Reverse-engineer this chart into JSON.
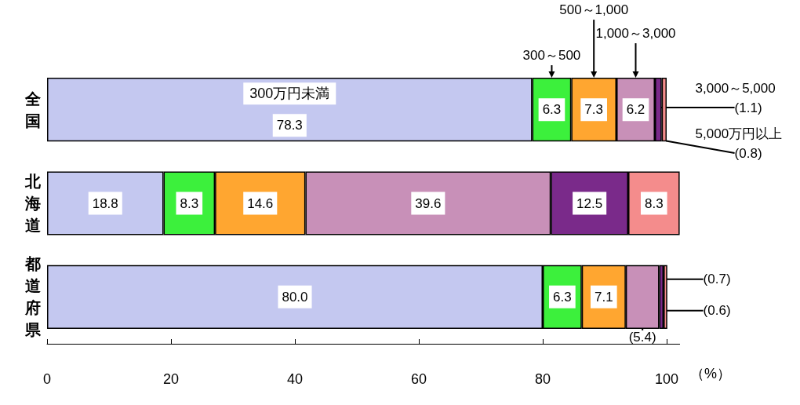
{
  "chart_data": {
    "type": "bar",
    "orientation": "horizontal",
    "stacked": true,
    "categories": [
      "全国",
      "北海道",
      "都道府県"
    ],
    "xlim": [
      0,
      102.1
    ],
    "xticks": [
      0,
      20,
      40,
      60,
      80,
      {
        "value": 100,
        "label": "100"
      }
    ],
    "xlabel": "（%）",
    "grid": false,
    "legend": false,
    "series": [
      {
        "name": "300万円未満",
        "color": "#c4c8f0",
        "values": [
          78.3,
          18.8,
          80.0
        ],
        "value_labels": [
          "78.3",
          "18.8",
          "80.0"
        ]
      },
      {
        "name": "300～500",
        "color": "#3cf03c",
        "values": [
          6.3,
          8.3,
          6.3
        ],
        "value_labels": [
          "6.3",
          "8.3",
          "6.3"
        ]
      },
      {
        "name": "500～1,000",
        "color": "#ffa630",
        "values": [
          7.3,
          14.6,
          7.1
        ],
        "value_labels": [
          "7.3",
          "14.6",
          "7.1"
        ]
      },
      {
        "name": "1,000～3,000",
        "color": "#c890b8",
        "values": [
          6.2,
          39.6,
          5.4
        ],
        "value_labels": [
          "6.2",
          "39.6",
          "(5.4)"
        ]
      },
      {
        "name": "3,000～5,000",
        "color": "#7a2a8a",
        "values": [
          1.1,
          12.5,
          0.7
        ],
        "value_labels": [
          "(1.1)",
          "12.5",
          "(0.7)"
        ]
      },
      {
        "name": "5,000万円以上",
        "color": "#f48c8c",
        "values": [
          0.8,
          8.3,
          0.6
        ],
        "value_labels": [
          "(0.8)",
          "8.3",
          "(0.6)"
        ]
      }
    ]
  }
}
